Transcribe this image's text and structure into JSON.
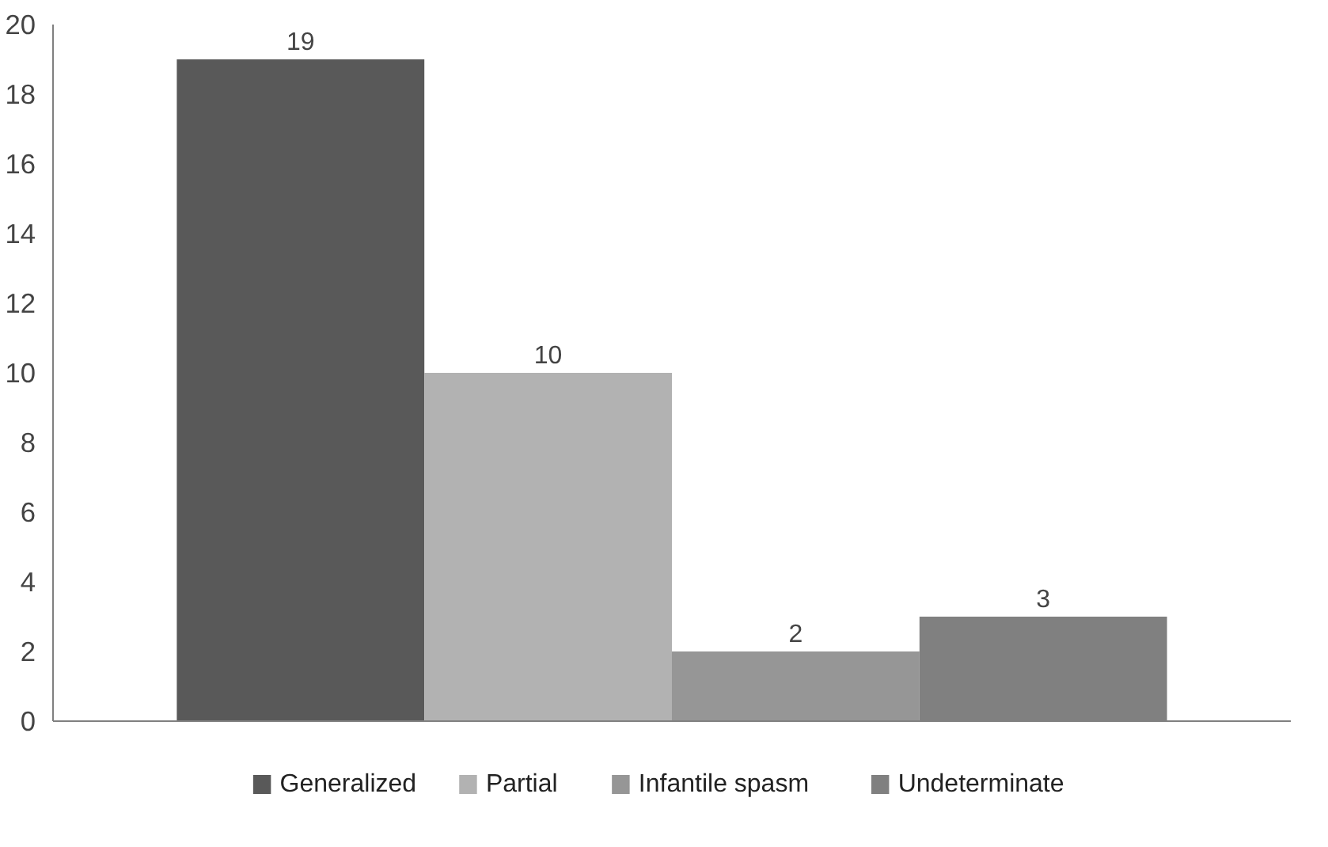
{
  "chart_data": {
    "type": "bar",
    "categories": [
      null
    ],
    "series": [
      {
        "name": "Generalized",
        "color": "#595959",
        "values": [
          19
        ]
      },
      {
        "name": "Partial",
        "color": "#b2b2b2",
        "values": [
          10
        ]
      },
      {
        "name": "Infantile spasm",
        "color": "#969696",
        "values": [
          2
        ]
      },
      {
        "name": "Undeterminate",
        "color": "#808080",
        "values": [
          3
        ]
      }
    ],
    "ylim": [
      0,
      20
    ],
    "yticks": [
      0,
      2,
      4,
      6,
      8,
      10,
      12,
      14,
      16,
      18,
      20
    ],
    "data_labels": true,
    "legend": "bottom",
    "grid": false
  }
}
